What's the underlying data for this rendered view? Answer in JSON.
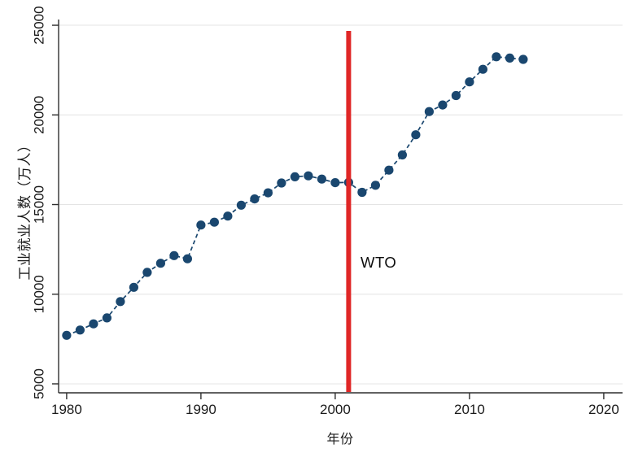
{
  "figure": {
    "background": "#ffffff",
    "xlabel": "年份",
    "ylabel": "工业就业人数（万人）"
  },
  "chart_data": {
    "type": "scatter",
    "title": "",
    "xlabel": "年份",
    "ylabel": "工业就业人数（万人）",
    "x": [
      1980,
      1981,
      1982,
      1983,
      1984,
      1985,
      1986,
      1987,
      1988,
      1989,
      1990,
      1991,
      1992,
      1993,
      1994,
      1995,
      1996,
      1997,
      1998,
      1999,
      2000,
      2001,
      2002,
      2003,
      2004,
      2005,
      2006,
      2007,
      2008,
      2009,
      2010,
      2011,
      2012,
      2013,
      2014
    ],
    "series": [
      {
        "name": "工业就业人数",
        "values": [
          7707,
          8003,
          8346,
          8679,
          9590,
          10384,
          11216,
          11726,
          12152,
          11976,
          13856,
          14015,
          14355,
          14965,
          15312,
          15655,
          16203,
          16547,
          16600,
          16421,
          16219,
          16234,
          15682,
          16077,
          16920,
          17766,
          18894,
          20186,
          20553,
          21080,
          21842,
          22544,
          23241,
          23170,
          23099
        ]
      }
    ],
    "xticks": [
      1980,
      1990,
      2000,
      2010,
      2020
    ],
    "yticks": [
      5000,
      10000,
      15000,
      20000,
      25000
    ],
    "xlim": [
      1979.4,
      2021.4
    ],
    "ylim": [
      4500,
      25320
    ],
    "grid": "horizontal-only",
    "legend_position": "none",
    "marker_style": "filled-circle-dashed-line",
    "colors": {
      "marker": "#1a476f",
      "line": "#1a476f",
      "gridline": "#e4e4e4",
      "axis": "#2f2f2f",
      "tick_label": "#1a1a1a",
      "vline": "#e02626"
    },
    "annotation": {
      "vline_year": 2001,
      "label": "WTO"
    }
  }
}
